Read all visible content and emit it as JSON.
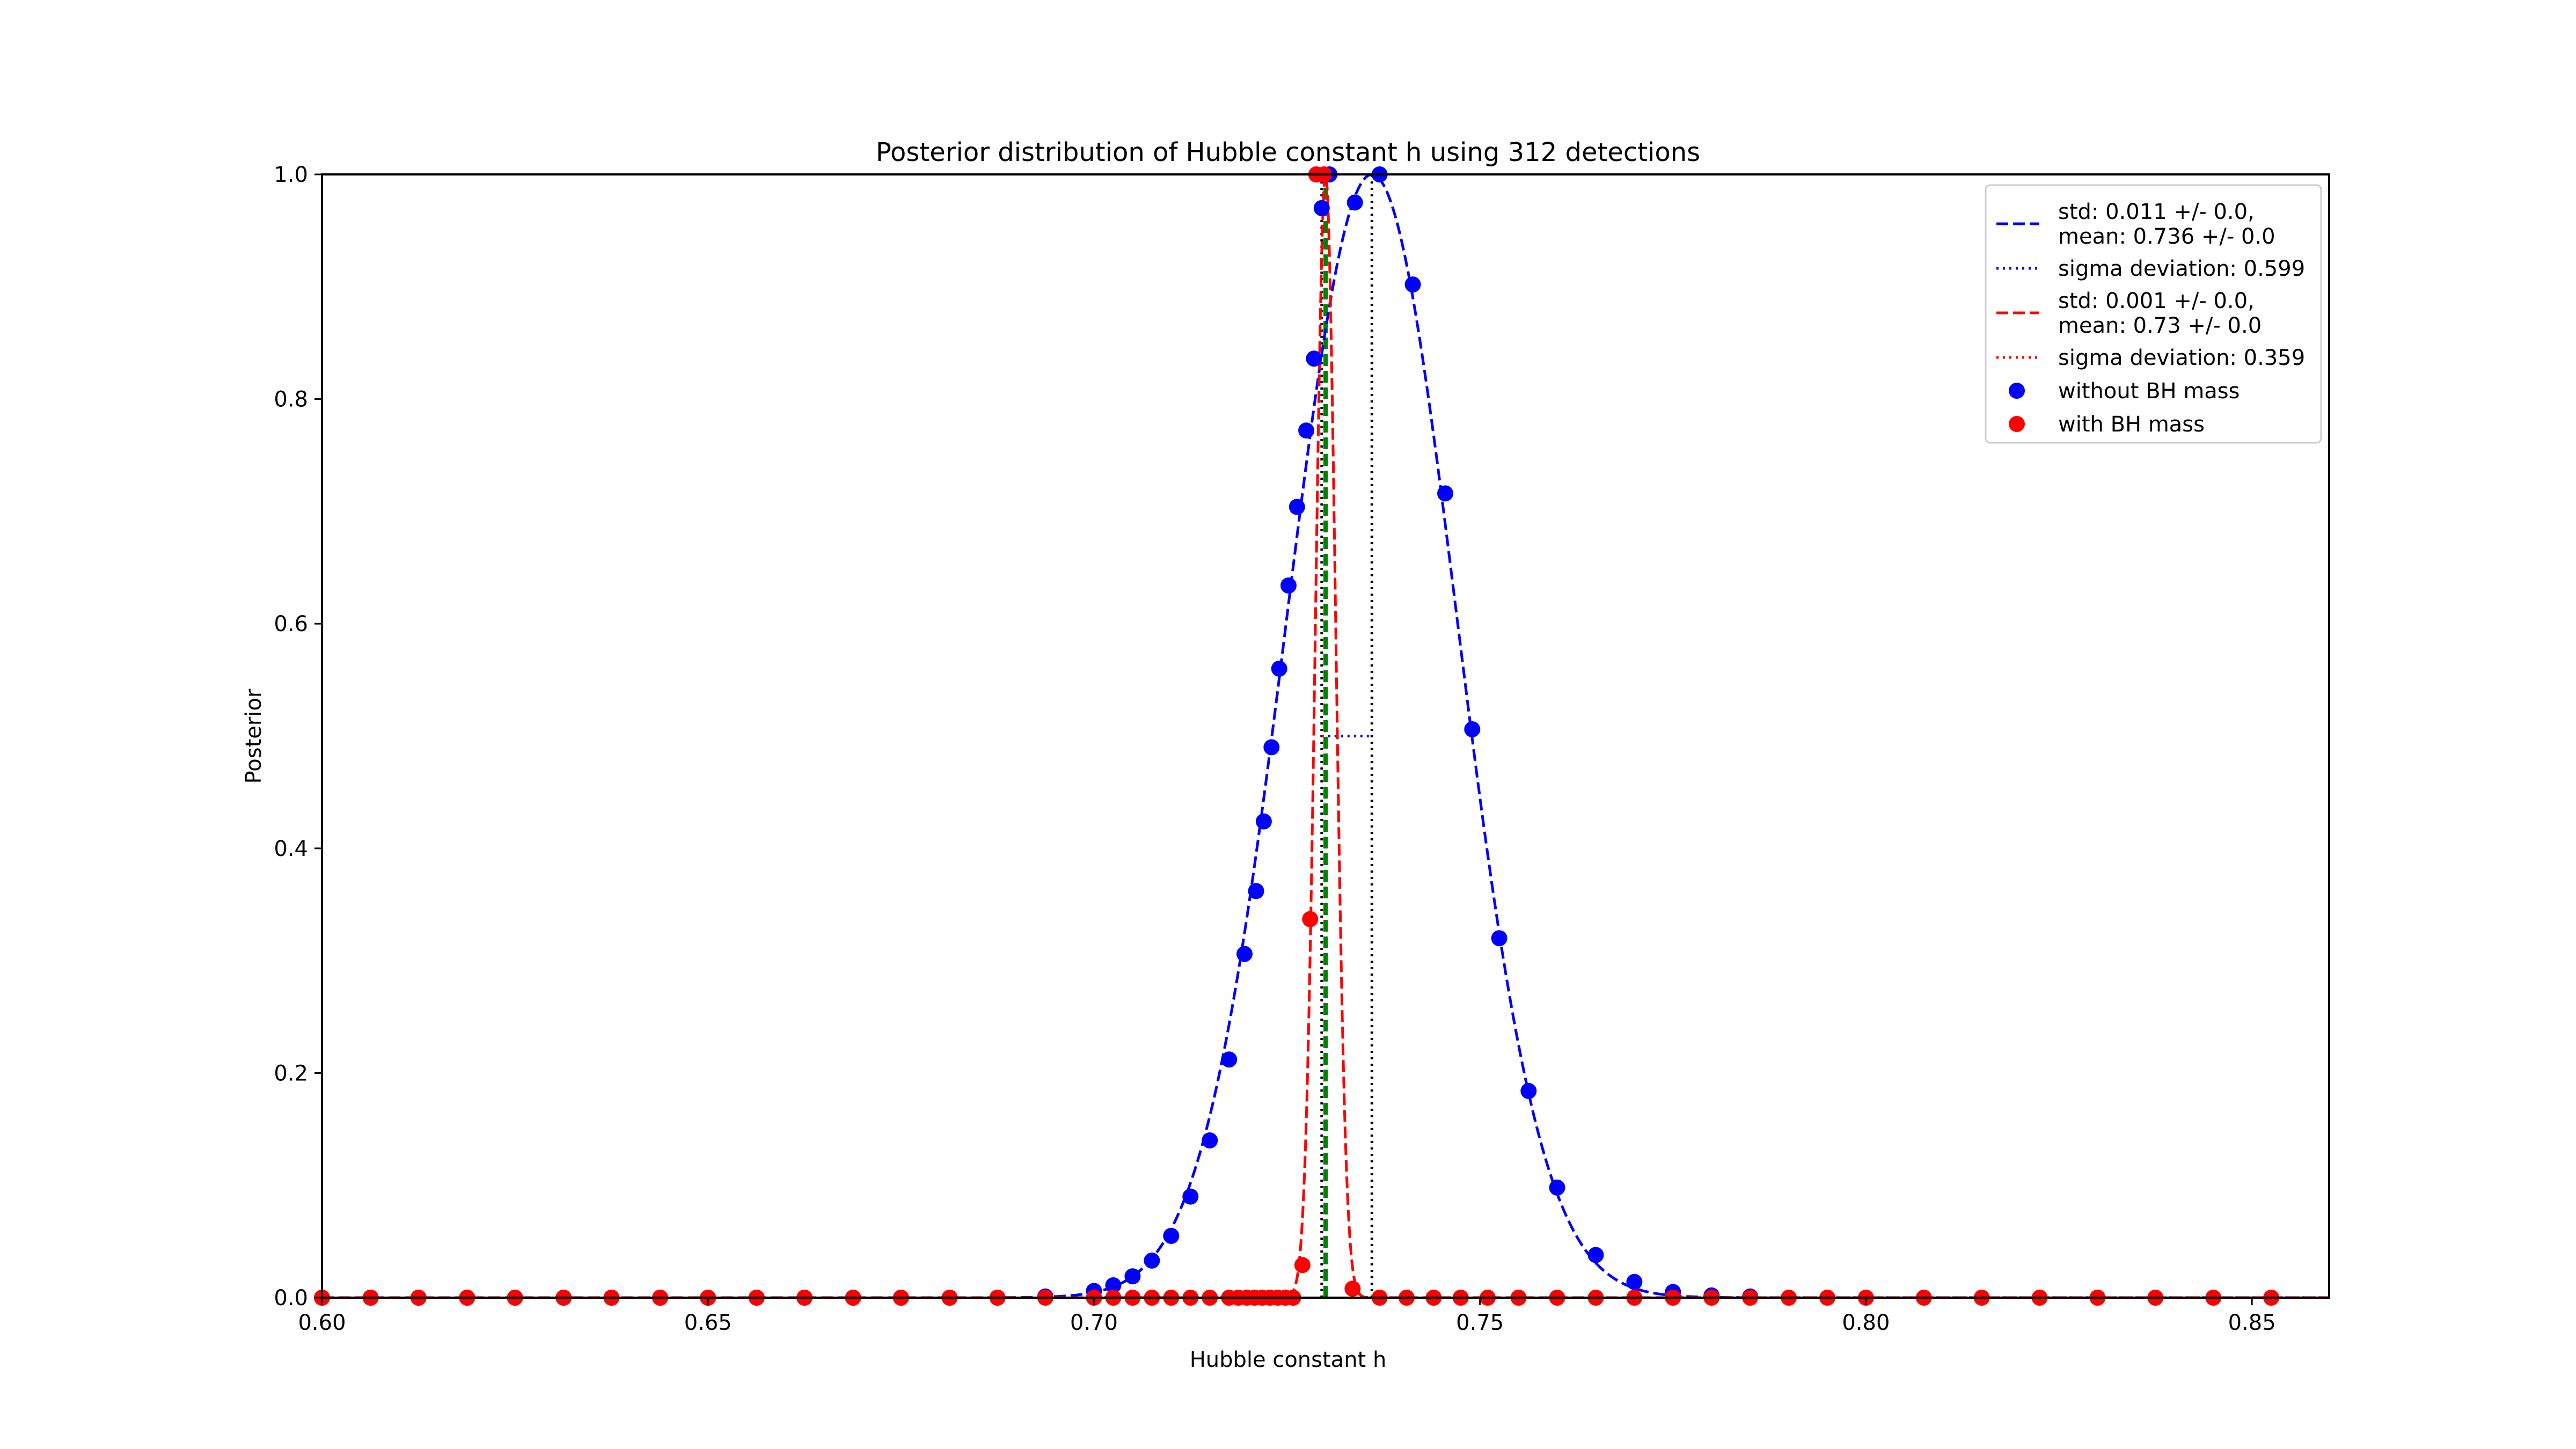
{
  "chart_data": {
    "type": "line",
    "title": "Posterior distribution of Hubble constant h using 312 detections",
    "xlabel": "Hubble constant h",
    "ylabel": "Posterior",
    "xlim": [
      0.6,
      0.86
    ],
    "ylim": [
      0.0,
      1.0
    ],
    "xticks": [
      "0.60",
      "0.65",
      "0.70",
      "0.75",
      "0.80",
      "0.85"
    ],
    "yticks": [
      "0.0",
      "0.2",
      "0.4",
      "0.6",
      "0.8",
      "1.0"
    ],
    "grid": false,
    "legend_position": "top-right",
    "series": [
      {
        "name": "without BH mass",
        "kind": "scatter",
        "color": "#0000ff",
        "x": [
          0.6,
          0.6063,
          0.6125,
          0.6188,
          0.625,
          0.6313,
          0.6375,
          0.6438,
          0.65,
          0.6563,
          0.6625,
          0.6688,
          0.675,
          0.6813,
          0.6875,
          0.6937,
          0.7,
          0.7025,
          0.705,
          0.7075,
          0.71,
          0.7125,
          0.715,
          0.7175,
          0.7195,
          0.721,
          0.722,
          0.723,
          0.724,
          0.7252,
          0.7263,
          0.7275,
          0.7285,
          0.7295,
          0.7305,
          0.7338,
          0.737,
          0.7413,
          0.7455,
          0.749,
          0.7525,
          0.7563,
          0.76,
          0.765,
          0.77,
          0.775,
          0.78,
          0.785
        ],
        "y": [
          0.0,
          0.0,
          0.0,
          0.0,
          0.0,
          0.0,
          0.0,
          0.0,
          0.0,
          0.0,
          0.0,
          0.0,
          0.0,
          0.0,
          0.0,
          0.001,
          0.006,
          0.011,
          0.019,
          0.033,
          0.055,
          0.09,
          0.14,
          0.212,
          0.306,
          0.362,
          0.424,
          0.49,
          0.56,
          0.634,
          0.704,
          0.772,
          0.836,
          0.97,
          1.0,
          0.975,
          1.0,
          0.902,
          0.716,
          0.506,
          0.32,
          0.184,
          0.098,
          0.038,
          0.014,
          0.005,
          0.002,
          0.001
        ]
      },
      {
        "name": "with BH mass",
        "kind": "scatter",
        "color": "#ff0000",
        "x": [
          0.6,
          0.6063,
          0.6125,
          0.6188,
          0.625,
          0.6313,
          0.6375,
          0.6438,
          0.65,
          0.6563,
          0.6625,
          0.6688,
          0.675,
          0.6813,
          0.6875,
          0.6937,
          0.7,
          0.7025,
          0.705,
          0.7075,
          0.71,
          0.7125,
          0.715,
          0.7175,
          0.7187,
          0.7198,
          0.7208,
          0.7218,
          0.7228,
          0.7238,
          0.7248,
          0.7258,
          0.727,
          0.728,
          0.7288,
          0.7298,
          0.7335,
          0.737,
          0.7405,
          0.744,
          0.7475,
          0.751,
          0.755,
          0.76,
          0.765,
          0.77,
          0.775,
          0.78,
          0.785,
          0.79,
          0.795,
          0.8,
          0.8075,
          0.815,
          0.8225,
          0.83,
          0.8375,
          0.845,
          0.8525
        ],
        "y": [
          0.0,
          0.0,
          0.0,
          0.0,
          0.0,
          0.0,
          0.0,
          0.0,
          0.0,
          0.0,
          0.0,
          0.0,
          0.0,
          0.0,
          0.0,
          0.0,
          0.0,
          0.0,
          0.0,
          0.0,
          0.0,
          0.0,
          0.0,
          0.0,
          0.0,
          0.0,
          0.0,
          0.0,
          0.0,
          0.0,
          0.0,
          0.0,
          0.029,
          0.337,
          1.0,
          1.0,
          0.008,
          0.0,
          0.0,
          0.0,
          0.0,
          0.0,
          0.0,
          0.0,
          0.0,
          0.0,
          0.0,
          0.0,
          0.0,
          0.0,
          0.0,
          0.0,
          0.0,
          0.0,
          0.0,
          0.0,
          0.0,
          0.0,
          0.0
        ]
      },
      {
        "name": "std: 0.011 +/- 0.0,\nmean: 0.736 +/- 0.0",
        "kind": "gaussian-fit",
        "color": "#0000ff",
        "dash": "dashed",
        "mean": 0.736,
        "std": 0.011
      },
      {
        "name": "sigma deviation: 0.599",
        "kind": "hline-segment",
        "color": "#0000ff",
        "dash": "dotted",
        "x": [
          0.7295,
          0.736
        ],
        "y": 0.5
      },
      {
        "name": "std: 0.001 +/- 0.0,\nmean: 0.73 +/- 0.0",
        "kind": "gaussian-fit",
        "color": "#ff0000",
        "dash": "dashed",
        "mean": 0.73,
        "std": 0.0013
      },
      {
        "name": "sigma deviation: 0.359",
        "kind": "hline-segment",
        "color": "#ff0000",
        "dash": "dotted",
        "x": [
          0.7295,
          0.73
        ],
        "y": 0.5
      }
    ],
    "reference_lines": [
      {
        "kind": "vline",
        "x": 0.73,
        "color": "#008000",
        "dash": "dashed"
      },
      {
        "kind": "vline",
        "x": 0.7295,
        "color": "#000000",
        "dash": "dotted"
      },
      {
        "kind": "vline",
        "x": 0.736,
        "color": "#000000",
        "dash": "dotted"
      }
    ],
    "legend": [
      {
        "lines": [
          "std: 0.011 +/- 0.0,",
          "mean: 0.736 +/- 0.0"
        ],
        "marker": "dashed",
        "color": "#0000ff"
      },
      {
        "lines": [
          "sigma deviation: 0.599"
        ],
        "marker": "dotted",
        "color": "#0000ff"
      },
      {
        "lines": [
          "std: 0.001 +/- 0.0,",
          "mean: 0.73 +/- 0.0"
        ],
        "marker": "dashed",
        "color": "#ff0000"
      },
      {
        "lines": [
          "sigma deviation: 0.359"
        ],
        "marker": "dotted",
        "color": "#ff0000"
      },
      {
        "lines": [
          "without BH mass"
        ],
        "marker": "dot",
        "color": "#0000ff"
      },
      {
        "lines": [
          "with BH mass"
        ],
        "marker": "dot",
        "color": "#ff0000"
      }
    ]
  }
}
